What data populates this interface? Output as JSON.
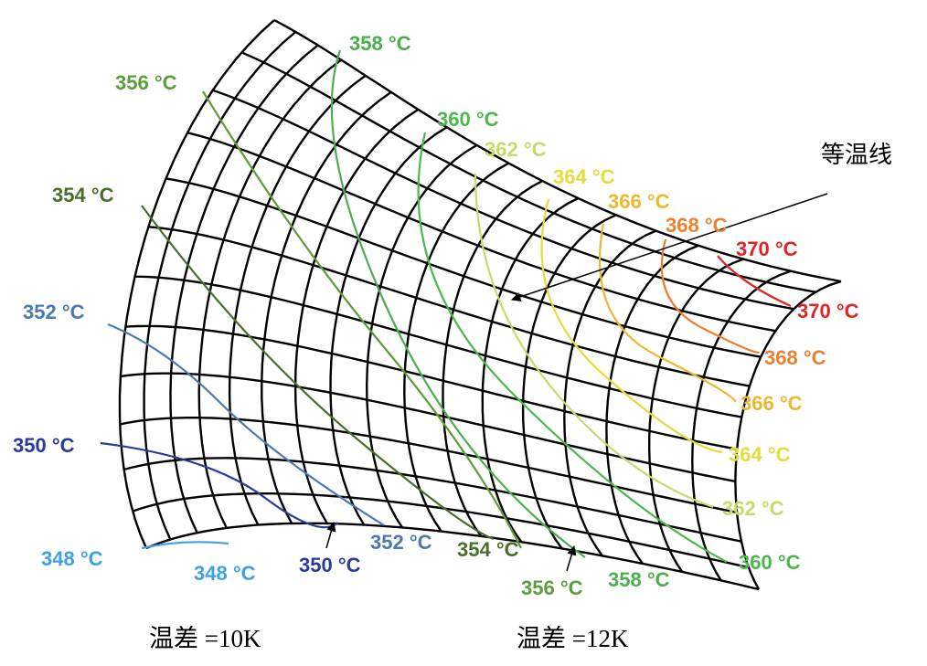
{
  "isotherm_labels": [
    {
      "text": "358 °C",
      "color": "#4cae4c"
    },
    {
      "text": "356 °C",
      "color": "#5a9e3a"
    },
    {
      "text": "360 °C",
      "color": "#4cb84c"
    },
    {
      "text": "362 °C",
      "color": "#c4dc6a"
    },
    {
      "text": "364 °C",
      "color": "#e4dc3c"
    },
    {
      "text": "366 °C",
      "color": "#ecb830"
    },
    {
      "text": "368 °C",
      "color": "#ec8030"
    },
    {
      "text": "370 °C",
      "color": "#e02424"
    },
    {
      "text": "354 °C",
      "color": "#4a6e2a"
    },
    {
      "text": "352 °C",
      "color": "#4a7ab0"
    },
    {
      "text": "350 °C",
      "color": "#2a3a9a"
    },
    {
      "text": "348 °C",
      "color": "#40a0e0"
    },
    {
      "text": "348 °C",
      "color": "#40a0e0"
    },
    {
      "text": "350 °C",
      "color": "#2a3a9a"
    },
    {
      "text": "352 °C",
      "color": "#4a7ab0"
    },
    {
      "text": "354 °C",
      "color": "#4a6e2a"
    },
    {
      "text": "356 °C",
      "color": "#5a9e3a"
    },
    {
      "text": "358 °C",
      "color": "#4cae4c"
    },
    {
      "text": "360 °C",
      "color": "#4cb84c"
    },
    {
      "text": "362 °C",
      "color": "#c4dc6a"
    },
    {
      "text": "364 °C",
      "color": "#e4dc3c"
    },
    {
      "text": "366 °C",
      "color": "#ecb830"
    },
    {
      "text": "368 °C",
      "color": "#ec8030"
    },
    {
      "text": "370 °C",
      "color": "#e02424"
    }
  ],
  "annotation": "等温线",
  "captions": [
    "温差 =10K",
    "温差 =12K"
  ]
}
